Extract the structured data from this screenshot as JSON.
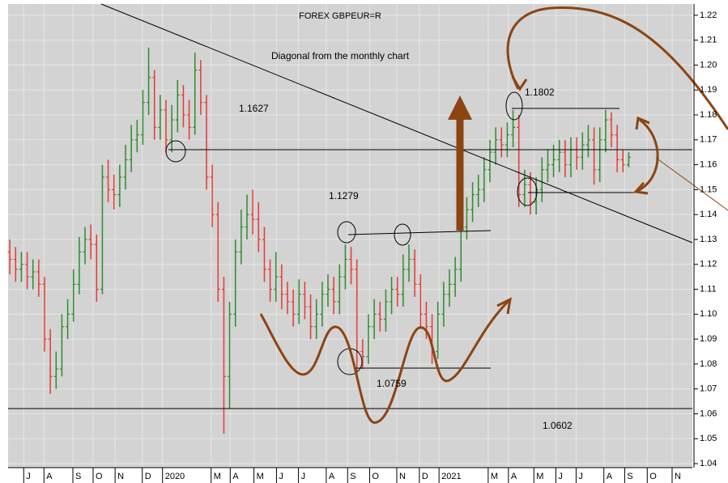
{
  "chart_data": {
    "type": "ohlc",
    "title": "FOREX GBPEUR=R",
    "annotations": [
      "Diagonal from the monthly chart",
      "1.1627",
      "1.1279",
      "1.0759",
      "1.0602",
      "1.1802"
    ],
    "up_color": "#2e8b2e",
    "down_color": "#e53935",
    "open": [
      1.125,
      1.122,
      1.118,
      1.12,
      1.115,
      1.117,
      1.112,
      1.09,
      1.075,
      1.078,
      1.095,
      1.1,
      1.112,
      1.125,
      1.13,
      1.128,
      1.11,
      1.155,
      1.15,
      1.148,
      1.155,
      1.162,
      1.17,
      1.172,
      1.185,
      1.195,
      1.175,
      1.182,
      1.17,
      1.178,
      1.188,
      1.18,
      1.175,
      1.198,
      1.185,
      1.155,
      1.14,
      1.11,
      1.075,
      1.1,
      1.125,
      1.135,
      1.14,
      1.138,
      1.13,
      1.118,
      1.11,
      1.115,
      1.108,
      1.105,
      1.1,
      1.108,
      1.103,
      1.095,
      1.1,
      1.108,
      1.11,
      1.105,
      1.115,
      1.122,
      1.118,
      1.085,
      1.083,
      1.095,
      1.1,
      1.098,
      1.105,
      1.11,
      1.108,
      1.118,
      1.122,
      1.112,
      1.1,
      1.095,
      1.085,
      1.1,
      1.108,
      1.112,
      1.118,
      1.135,
      1.142,
      1.148,
      1.15,
      1.158,
      1.165,
      1.17,
      1.168,
      1.172,
      1.175,
      1.148,
      1.152,
      1.145,
      1.15,
      1.158,
      1.16,
      1.162,
      1.165,
      1.16,
      1.166,
      1.163,
      1.168,
      1.17,
      1.158,
      1.17,
      1.178,
      1.172,
      1.162,
      1.16
    ],
    "high": [
      1.13,
      1.127,
      1.125,
      1.125,
      1.122,
      1.122,
      1.115,
      1.094,
      1.085,
      1.1,
      1.106,
      1.118,
      1.131,
      1.135,
      1.136,
      1.132,
      1.16,
      1.162,
      1.156,
      1.16,
      1.168,
      1.176,
      1.178,
      1.19,
      1.207,
      1.198,
      1.188,
      1.186,
      1.184,
      1.194,
      1.192,
      1.186,
      1.205,
      1.202,
      1.188,
      1.16,
      1.145,
      1.115,
      1.105,
      1.13,
      1.142,
      1.148,
      1.15,
      1.145,
      1.135,
      1.122,
      1.125,
      1.12,
      1.113,
      1.11,
      1.114,
      1.113,
      1.108,
      1.106,
      1.113,
      1.116,
      1.115,
      1.12,
      1.128,
      1.127,
      1.122,
      1.09,
      1.1,
      1.106,
      1.105,
      1.11,
      1.115,
      1.115,
      1.124,
      1.128,
      1.126,
      1.116,
      1.105,
      1.1,
      1.105,
      1.113,
      1.118,
      1.123,
      1.14,
      1.147,
      1.153,
      1.156,
      1.163,
      1.17,
      1.175,
      1.175,
      1.177,
      1.182,
      1.18,
      1.158,
      1.157,
      1.155,
      1.163,
      1.166,
      1.168,
      1.17,
      1.17,
      1.171,
      1.171,
      1.173,
      1.176,
      1.175,
      1.175,
      1.182,
      1.181,
      1.176,
      1.166,
      1.165
    ],
    "low": [
      1.116,
      1.113,
      1.113,
      1.11,
      1.11,
      1.107,
      1.085,
      1.068,
      1.07,
      1.075,
      1.09,
      1.097,
      1.108,
      1.12,
      1.122,
      1.105,
      1.108,
      1.145,
      1.142,
      1.143,
      1.15,
      1.157,
      1.165,
      1.168,
      1.18,
      1.17,
      1.17,
      1.165,
      1.165,
      1.173,
      1.175,
      1.17,
      1.172,
      1.18,
      1.15,
      1.135,
      1.105,
      1.052,
      1.062,
      1.095,
      1.12,
      1.13,
      1.132,
      1.125,
      1.113,
      1.105,
      1.105,
      1.102,
      1.1,
      1.095,
      1.096,
      1.098,
      1.09,
      1.09,
      1.095,
      1.103,
      1.1,
      1.1,
      1.11,
      1.112,
      1.076,
      1.078,
      1.08,
      1.09,
      1.093,
      1.093,
      1.1,
      1.103,
      1.103,
      1.113,
      1.107,
      1.095,
      1.09,
      1.08,
      1.082,
      1.095,
      1.103,
      1.107,
      1.113,
      1.13,
      1.137,
      1.143,
      1.145,
      1.153,
      1.16,
      1.163,
      1.163,
      1.167,
      1.143,
      1.143,
      1.14,
      1.14,
      1.145,
      1.153,
      1.155,
      1.157,
      1.155,
      1.155,
      1.158,
      1.158,
      1.163,
      1.152,
      1.153,
      1.165,
      1.167,
      1.157,
      1.157,
      1.159
    ],
    "close": [
      1.122,
      1.118,
      1.12,
      1.115,
      1.117,
      1.112,
      1.09,
      1.075,
      1.078,
      1.095,
      1.1,
      1.112,
      1.125,
      1.13,
      1.128,
      1.11,
      1.155,
      1.15,
      1.148,
      1.155,
      1.162,
      1.17,
      1.172,
      1.185,
      1.195,
      1.175,
      1.182,
      1.17,
      1.178,
      1.188,
      1.18,
      1.175,
      1.198,
      1.185,
      1.155,
      1.14,
      1.11,
      1.075,
      1.1,
      1.125,
      1.135,
      1.14,
      1.138,
      1.13,
      1.118,
      1.11,
      1.115,
      1.108,
      1.105,
      1.1,
      1.108,
      1.103,
      1.095,
      1.1,
      1.108,
      1.11,
      1.105,
      1.115,
      1.122,
      1.118,
      1.085,
      1.083,
      1.095,
      1.1,
      1.098,
      1.105,
      1.11,
      1.108,
      1.118,
      1.122,
      1.112,
      1.1,
      1.095,
      1.085,
      1.1,
      1.108,
      1.112,
      1.118,
      1.135,
      1.142,
      1.148,
      1.15,
      1.158,
      1.165,
      1.17,
      1.168,
      1.172,
      1.175,
      1.148,
      1.152,
      1.145,
      1.15,
      1.158,
      1.16,
      1.162,
      1.165,
      1.16,
      1.166,
      1.163,
      1.168,
      1.17,
      1.158,
      1.17,
      1.178,
      1.172,
      1.162,
      1.16,
      1.163
    ],
    "xlim": [
      -0.3,
      118
    ],
    "xticks": [
      {
        "value": 2.4,
        "label": "J"
      },
      {
        "value": 5.9,
        "label": "A"
      },
      {
        "value": 10.9,
        "label": "S"
      },
      {
        "value": 14.4,
        "label": "O"
      },
      {
        "value": 18.2,
        "label": "N"
      },
      {
        "value": 22.9,
        "label": "D"
      },
      {
        "value": 26.4,
        "label": "2020"
      },
      {
        "value": 34.8,
        "label": "M"
      },
      {
        "value": 38.1,
        "label": "A"
      },
      {
        "value": 42.2,
        "label": "M"
      },
      {
        "value": 46.1,
        "label": "J"
      },
      {
        "value": 49.9,
        "label": "J"
      },
      {
        "value": 54.7,
        "label": "A"
      },
      {
        "value": 58.4,
        "label": "S"
      },
      {
        "value": 62.2,
        "label": "O"
      },
      {
        "value": 66.9,
        "label": "N"
      },
      {
        "value": 70.8,
        "label": "D"
      },
      {
        "value": 74.2,
        "label": "2021"
      },
      {
        "value": 82.7,
        "label": "M"
      },
      {
        "value": 86.2,
        "label": "A"
      },
      {
        "value": 90.6,
        "label": "M"
      },
      {
        "value": 94.4,
        "label": "J"
      },
      {
        "value": 97.9,
        "label": "J"
      },
      {
        "value": 102.7,
        "label": "A"
      },
      {
        "value": 106.3,
        "label": "S"
      },
      {
        "value": 110.2,
        "label": "O"
      },
      {
        "value": 114.5,
        "label": "N"
      }
    ],
    "ylim": [
      1.0384,
      1.2245
    ],
    "yticks": [
      1.04,
      1.05,
      1.06,
      1.07,
      1.08,
      1.09,
      {
        "value": 1.1,
        "label": "1.10"
      },
      1.11,
      1.12,
      1.13,
      1.14,
      1.15,
      1.16,
      1.17,
      1.18,
      1.19,
      {
        "value": 1.2,
        "label": "1.20"
      },
      1.21,
      1.22
    ],
    "grid": true
  }
}
